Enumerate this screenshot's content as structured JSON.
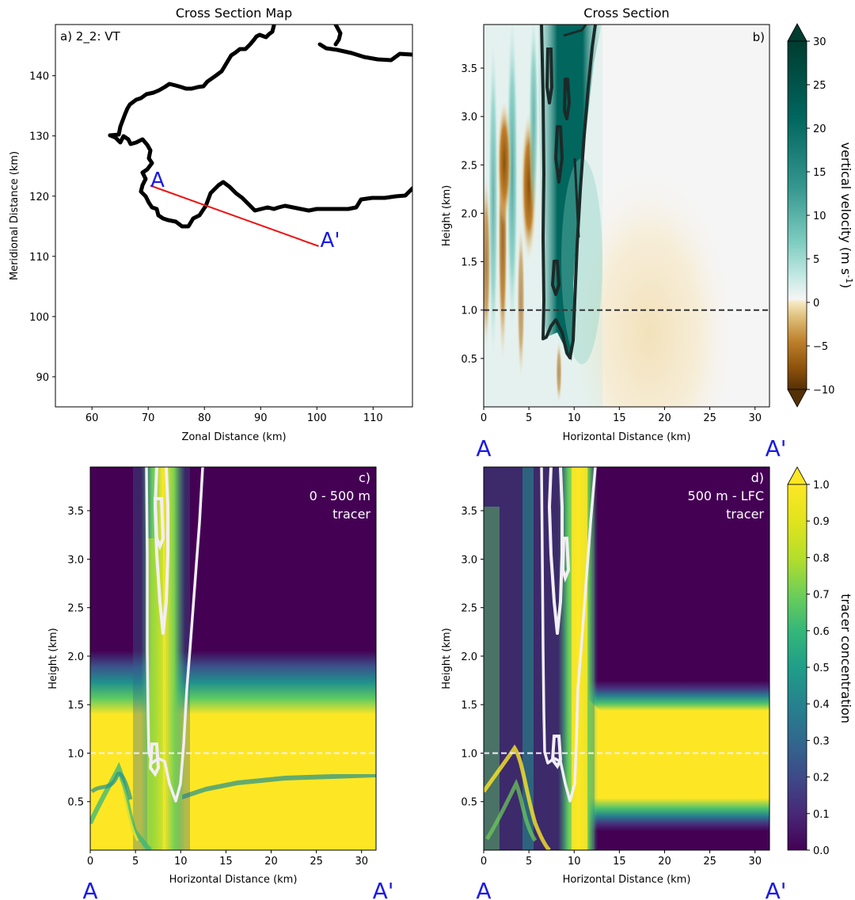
{
  "figure": {
    "colors": {
      "section_line": "#ee1111",
      "endpoint_label": "#1a1ae6",
      "coast": "#000000",
      "w_contour": "#1b2a28",
      "tracer_contour": "#f2eef6",
      "bg_dark": "#440154"
    }
  },
  "chart_data": [
    {
      "id": "a",
      "type": "map",
      "title": "Cross Section Map",
      "panel_label": "a) 2_2: VT",
      "xlabel": "Zonal Distance (km)",
      "ylabel": "Meridional Distance (km)",
      "xlim": [
        53.5,
        117
      ],
      "ylim": [
        85,
        148.5
      ],
      "xticks": [
        60,
        70,
        80,
        90,
        100,
        110
      ],
      "yticks": [
        90,
        100,
        110,
        120,
        130,
        140
      ],
      "section_line": {
        "start": [
          70,
          122
        ],
        "end": [
          100,
          112
        ],
        "start_label": "A",
        "end_label": "A'"
      }
    },
    {
      "id": "b",
      "type": "heatmap",
      "title": "Cross Section",
      "panel_label": "b)",
      "xlabel": "Horizontal Distance (km)",
      "ylabel": "Height (km)",
      "xlim": [
        0,
        31.6
      ],
      "ylim": [
        0,
        3.95
      ],
      "xticks": [
        0,
        5,
        10,
        15,
        20,
        25,
        30
      ],
      "yticks": [
        0.5,
        1.0,
        1.5,
        2.0,
        2.5,
        3.0,
        3.5
      ],
      "reference_height_km": 1.0,
      "endpoint_left": "A",
      "endpoint_right": "A'",
      "colorbar": {
        "label": "vertical velocity (m s",
        "label_exp": "-1",
        "label_close": ")",
        "range": [
          -10,
          30
        ],
        "ticks": [
          -10,
          -5,
          0,
          5,
          10,
          15,
          20,
          25,
          30
        ],
        "colormap": "BrBG"
      }
    },
    {
      "id": "c",
      "type": "heatmap",
      "panel_label_lines": [
        "c)",
        "0 - 500 m",
        "tracer"
      ],
      "xlabel": "Horizontal Distance (km)",
      "ylabel": "Height (km)",
      "xlim": [
        0,
        31.6
      ],
      "ylim": [
        0,
        3.95
      ],
      "xticks": [
        0,
        5,
        10,
        15,
        20,
        25,
        30
      ],
      "yticks": [
        0.5,
        1.0,
        1.5,
        2.0,
        2.5,
        3.0,
        3.5
      ],
      "reference_height_km": 1.0,
      "endpoint_left": "A",
      "endpoint_right": "A'"
    },
    {
      "id": "d",
      "type": "heatmap",
      "panel_label_lines": [
        "d)",
        "500 m - LFC",
        "tracer"
      ],
      "xlabel": "Horizontal Distance (km)",
      "ylabel": "Height (km)",
      "xlim": [
        0,
        31.6
      ],
      "ylim": [
        0,
        3.95
      ],
      "xticks": [
        0,
        5,
        10,
        15,
        20,
        25,
        30
      ],
      "yticks": [
        0.5,
        1.0,
        1.5,
        2.0,
        2.5,
        3.0,
        3.5
      ],
      "reference_height_km": 1.0,
      "endpoint_left": "A",
      "endpoint_right": "A'",
      "colorbar": {
        "label": "tracer concentration",
        "range": [
          0,
          1
        ],
        "ticks": [
          0.0,
          0.1,
          0.2,
          0.3,
          0.4,
          0.5,
          0.6,
          0.7,
          0.8,
          0.9,
          1.0
        ],
        "colormap": "viridis"
      }
    }
  ]
}
